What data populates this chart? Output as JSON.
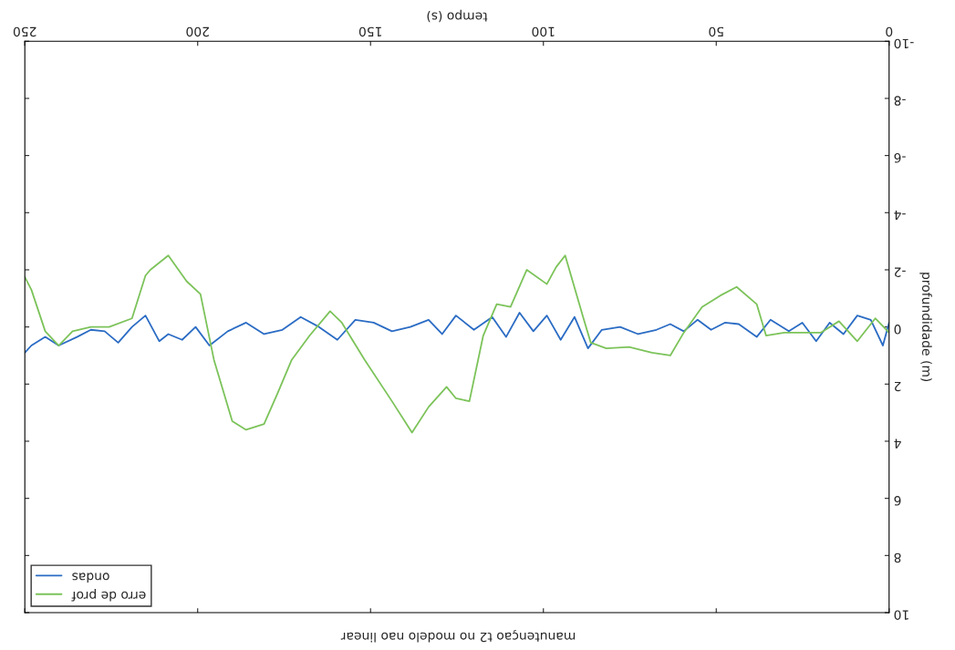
{
  "chart_data": {
    "type": "line",
    "title": "manutençao t2 no modelo nao linear",
    "xlabel": "tempo (s)",
    "ylabel": "profundidade (m)",
    "xlim": [
      250,
      0
    ],
    "ylim": [
      10,
      -10
    ],
    "xticks": [
      0,
      50,
      100,
      150,
      200,
      250
    ],
    "yticks": [
      -10,
      -8,
      -6,
      -4,
      -2,
      0,
      2,
      4,
      6,
      8,
      10
    ],
    "grid": false,
    "legend": "bottom left",
    "marker": "none",
    "line_style": "solid",
    "series": [
      {
        "name": "ondas",
        "color": "#2b6cc4",
        "x": [
          0,
          1.8,
          5.3,
          9.2,
          13.2,
          17.2,
          21.1,
          25.1,
          29.0,
          34.3,
          38.3,
          43.5,
          47.5,
          51.5,
          55.4,
          59.4,
          63.3,
          67.3,
          72.6,
          77.8,
          83.1,
          87.1,
          91.0,
          95.0,
          99.0,
          102.9,
          106.9,
          110.8,
          114.8,
          120.1,
          125.3,
          129.3,
          133.2,
          138.5,
          143.8,
          149.1,
          154.4,
          159.6,
          164.9,
          170.2,
          175.5,
          180.8,
          186.0,
          191.3,
          196.6,
          200.6,
          204.5,
          208.5,
          211.1,
          215.1,
          219.0,
          223.0,
          226.9,
          230.9,
          234.9,
          240.2,
          244.1,
          248.1,
          250
        ],
        "values": [
          -0.15,
          0.65,
          -0.25,
          -0.4,
          0.25,
          -0.15,
          0.5,
          -0.15,
          0.15,
          -0.25,
          0.35,
          -0.1,
          -0.15,
          0.1,
          -0.25,
          0.15,
          -0.1,
          0.1,
          0.25,
          0,
          0.1,
          0.75,
          -0.35,
          0.45,
          -0.4,
          0.15,
          -0.5,
          0.35,
          -0.35,
          0.1,
          -0.4,
          0.25,
          -0.25,
          0,
          0.15,
          -0.15,
          -0.25,
          0.45,
          0,
          -0.35,
          0.1,
          0.25,
          -0.15,
          0.15,
          0.65,
          0,
          0.45,
          0.25,
          0.5,
          -0.4,
          0,
          0.55,
          0.15,
          0.1,
          0.35,
          0.65,
          0.35,
          0.65,
          0.9
        ]
      },
      {
        "name": "erro de prof",
        "color": "#7cc35a",
        "x": [
          0,
          4.0,
          9.2,
          14.5,
          19.8,
          25.1,
          30.3,
          35.6,
          38.3,
          44.1,
          48.8,
          54.1,
          59.4,
          63.3,
          68.6,
          75.2,
          81.8,
          86.3,
          88.4,
          93.7,
          96.3,
          99.0,
          104.8,
          109.5,
          113.5,
          117.4,
          121.4,
          125.3,
          128.0,
          133.2,
          138.0,
          143.8,
          151.7,
          158.3,
          161.7,
          167.6,
          172.8,
          176.8,
          180.8,
          186.0,
          190.0,
          195.3,
          199.2,
          203.2,
          208.5,
          213.7,
          215.1,
          219.0,
          225.6,
          230.9,
          236.2,
          240.2,
          244.1,
          248.1,
          250
        ],
        "values": [
          0.2,
          -0.3,
          0.5,
          -0.2,
          0.2,
          0.2,
          0.2,
          0.3,
          -0.8,
          -1.4,
          -1.1,
          -0.7,
          0.2,
          1.0,
          0.9,
          0.7,
          0.75,
          0.55,
          -0.3,
          -2.5,
          -2.1,
          -1.5,
          -2.0,
          -0.7,
          -0.8,
          0.3,
          2.6,
          2.5,
          2.1,
          2.8,
          3.7,
          2.6,
          1.15,
          -0.15,
          -0.55,
          0.3,
          1.15,
          2.3,
          3.4,
          3.6,
          3.3,
          1.15,
          -1.15,
          -1.6,
          -2.5,
          -2.0,
          -1.8,
          -0.3,
          0,
          0,
          0.15,
          0.65,
          0.15,
          -1.3,
          -1.75
        ]
      }
    ]
  }
}
